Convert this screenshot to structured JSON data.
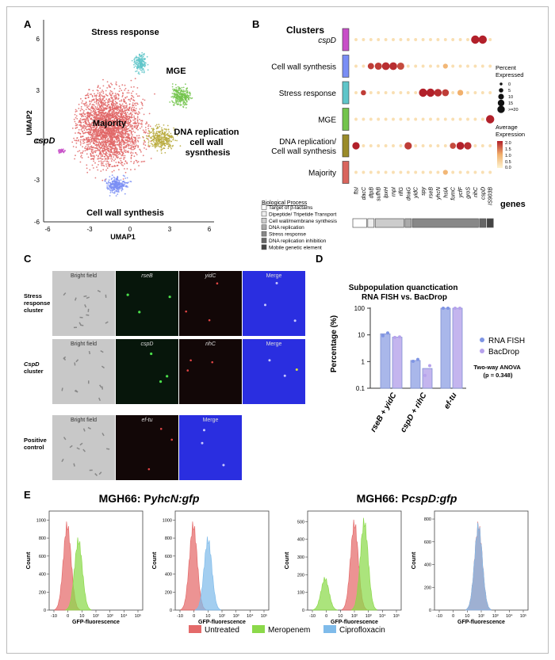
{
  "panel_labels": {
    "a": "A",
    "b": "B",
    "c": "C",
    "d": "D",
    "e": "E"
  },
  "chart_data": [
    {
      "type": "scatter",
      "title": "",
      "xlabel": "UMAP1",
      "ylabel": "UMAP2",
      "xticks": [
        "-6",
        "-3",
        "0",
        "3",
        "6"
      ],
      "yticks": [
        "6",
        "3",
        "0",
        "-3",
        "-6"
      ],
      "xlim": [
        -6,
        7
      ],
      "ylim": [
        -6,
        6.8
      ],
      "clusters": [
        {
          "name": "Majority",
          "color": "#e06666",
          "center": [
            -1.5,
            0.5
          ]
        },
        {
          "name": "Stress response",
          "color": "#5fc5c9",
          "center": [
            0.9,
            4.9
          ]
        },
        {
          "name": "MGE",
          "color": "#73c44c",
          "center": [
            3.8,
            2.5
          ]
        },
        {
          "name": "DNA replication and cell wall sysnthesis",
          "color": "#b9aa3c",
          "center": [
            2.3,
            -0.3
          ]
        },
        {
          "name": "cspD",
          "color": "#c84fc8",
          "center": [
            -5.0,
            -1.1
          ]
        },
        {
          "name": "Cell wall synthesis",
          "color": "#7a8ef5",
          "center": [
            -0.8,
            -3.6
          ]
        }
      ]
    },
    {
      "type": "dotplot",
      "title": "Clusters",
      "genes_label": "genes",
      "rows": [
        {
          "name": "cspD",
          "color": "#c84fc8"
        },
        {
          "name": "Cell wall synthesis",
          "color": "#7a8ef5"
        },
        {
          "name": "Stress response",
          "color": "#5fc5c9"
        },
        {
          "name": "MGE",
          "color": "#73c44c"
        },
        {
          "name": "DNA replication/ Cell wall synthesis",
          "color": "#9a8b2a"
        },
        {
          "name": "Majority",
          "color": "#d9655d"
        }
      ],
      "genes": [
        "ftsI",
        "dacC",
        "dtpB",
        "sufhB",
        "lpxH",
        "rnpI",
        "rlfG",
        "dnaG",
        "yidC",
        "spy",
        "rseB",
        "yhcN",
        "hslA",
        "fumC",
        "ycfF",
        "groS",
        "rihC",
        "cspD",
        "IS903B"
      ],
      "gene_groups": [
        {
          "process": "Target of β-lactams",
          "count": 2,
          "color": "#ffffff"
        },
        {
          "process": "Dipeptide/ Tripetide Transport",
          "count": 1,
          "color": "#eeeeee"
        },
        {
          "process": "Cell wall/membrane synthesis",
          "count": 4,
          "color": "#cccccc"
        },
        {
          "process": "DNA replication",
          "count": 1,
          "color": "#aaaaaa"
        },
        {
          "process": "Stress response",
          "count": 9,
          "color": "#888888"
        },
        {
          "process": "DNA replication inhibition",
          "count": 1,
          "color": "#666666"
        },
        {
          "process": "Mobile genetic element",
          "count": 1,
          "color": "#444444"
        }
      ],
      "legend_title_biological": "Biological Process",
      "percent_expressed": {
        "title": "Percent Expressed",
        "levels": [
          "0",
          "5",
          "10",
          "15",
          ">=20"
        ]
      },
      "average_expression": {
        "title": "Average Expression",
        "ticks": [
          "2.0",
          "1.5",
          "1.0",
          "0.5",
          "0.0"
        ],
        "range": [
          0,
          2
        ]
      },
      "high_dots": [
        {
          "row": 0,
          "gene": 16,
          "pct": 20,
          "avg": 2.0
        },
        {
          "row": 0,
          "gene": 17,
          "pct": 20,
          "avg": 2.0
        },
        {
          "row": 1,
          "gene": 2,
          "pct": 10,
          "avg": 1.8
        },
        {
          "row": 1,
          "gene": 3,
          "pct": 14,
          "avg": 1.8
        },
        {
          "row": 1,
          "gene": 4,
          "pct": 17,
          "avg": 1.9
        },
        {
          "row": 1,
          "gene": 5,
          "pct": 17,
          "avg": 1.9
        },
        {
          "row": 1,
          "gene": 6,
          "pct": 14,
          "avg": 1.7
        },
        {
          "row": 2,
          "gene": 1,
          "pct": 6,
          "avg": 1.8
        },
        {
          "row": 2,
          "gene": 9,
          "pct": 20,
          "avg": 2.0
        },
        {
          "row": 2,
          "gene": 10,
          "pct": 20,
          "avg": 2.0
        },
        {
          "row": 2,
          "gene": 11,
          "pct": 16,
          "avg": 1.9
        },
        {
          "row": 2,
          "gene": 12,
          "pct": 13,
          "avg": 1.8
        },
        {
          "row": 2,
          "gene": 14,
          "pct": 8,
          "avg": 1.0
        },
        {
          "row": 3,
          "gene": 18,
          "pct": 20,
          "avg": 2.0
        },
        {
          "row": 4,
          "gene": 0,
          "pct": 15,
          "avg": 2.0
        },
        {
          "row": 4,
          "gene": 7,
          "pct": 15,
          "avg": 1.8
        },
        {
          "row": 4,
          "gene": 13,
          "pct": 9,
          "avg": 1.7
        },
        {
          "row": 4,
          "gene": 14,
          "pct": 17,
          "avg": 2.0
        },
        {
          "row": 4,
          "gene": 15,
          "pct": 15,
          "avg": 1.9
        },
        {
          "row": 1,
          "gene": 12,
          "pct": 5,
          "avg": 0.9
        },
        {
          "row": 5,
          "gene": 12,
          "pct": 5,
          "avg": 0.9
        }
      ]
    },
    {
      "type": "image-grid",
      "rows": [
        {
          "label": "Stress response cluster",
          "columns": [
            "Bright field",
            "rseB",
            "yidC",
            "Merge"
          ]
        },
        {
          "label": "CspD cluster",
          "columns": [
            "Bright field",
            "cspD",
            "rihC",
            "Merge"
          ]
        },
        {
          "label": "Positive control",
          "columns": [
            "Bright field",
            "ef-tu",
            "Merge"
          ]
        }
      ]
    },
    {
      "type": "bar",
      "title": "Subpopulation quanctication RNA FISH vs. BacDrop",
      "ylabel": "Percentage (%)",
      "yscale": "log",
      "ylim": [
        0.1,
        100
      ],
      "yticks": [
        "100",
        "10",
        "1",
        "0.1"
      ],
      "categories": [
        "rseB + yidC",
        "cspD + rihC",
        "ef-tu"
      ],
      "series": [
        {
          "name": "RNA FISH",
          "color": "#a9b7ea",
          "values": [
            11,
            1.1,
            100
          ],
          "points": [
            [
              9.3,
              11.8
            ],
            [
              1.02,
              1.2
            ],
            [
              100,
              100
            ]
          ]
        },
        {
          "name": "BacDrop",
          "color": "#c4b5ee",
          "values": [
            8.2,
            0.55,
            100
          ],
          "points": [
            [
              8.0,
              8.4
            ],
            [
              0.3,
              0.7
            ],
            [
              100,
              100
            ]
          ]
        }
      ],
      "annotation": "Two-way ANOVA (p = 0.348)"
    },
    {
      "type": "histogram",
      "title": "MGH66: PyhcN:gfp",
      "title_prefix": "MGH66: P",
      "title_gene": "yhcN:gfp",
      "xlabel": "GFP-fluorescence",
      "ylabel": "Count",
      "xticks": [
        "-10",
        "0",
        "10",
        "10²",
        "10³",
        "10⁴",
        "10⁵"
      ],
      "panels": [
        {
          "yticks": [
            "0",
            "200",
            "400",
            "600",
            "800",
            "1000"
          ],
          "ymax": 1100,
          "series": [
            {
              "name": "Untreated",
              "peak": 1000,
              "center": 0.95
            },
            {
              "name": "Meropenem",
              "peak": 820,
              "center": 1.75
            }
          ]
        },
        {
          "yticks": [
            "0",
            "200",
            "400",
            "600",
            "800",
            "1000"
          ],
          "ymax": 1100,
          "series": [
            {
              "name": "Untreated",
              "peak": 1000,
              "center": 0.95
            },
            {
              "name": "Ciprofloxacin",
              "peak": 830,
              "center": 2.0
            }
          ]
        }
      ]
    },
    {
      "type": "histogram",
      "title": "MGH66: PcspD:gfp",
      "title_prefix": "MGH66: P",
      "title_gene": "cspD:gfp",
      "xlabel": "GFP-fluorescence",
      "ylabel": "Count",
      "xticks": [
        "-10",
        "0",
        "10",
        "10²",
        "10³",
        "10⁴",
        "10⁵"
      ],
      "panels": [
        {
          "yticks": [
            "0",
            "100",
            "200",
            "300",
            "400",
            "500"
          ],
          "ymax": 560,
          "series": [
            {
              "name": "Meropenem",
              "peak": 190,
              "center": 0.9
            },
            {
              "name": "Untreated",
              "peak": 520,
              "center": 3.0
            },
            {
              "name": "Meropenem",
              "peak": 530,
              "center": 3.7
            }
          ]
        },
        {
          "yticks": [
            "0",
            "200",
            "400",
            "600",
            "800"
          ],
          "ymax": 870,
          "series": [
            {
              "name": "Untreated",
              "peak": 790,
              "center": 2.8
            },
            {
              "name": "Ciprofloxacin",
              "peak": 780,
              "center": 2.8
            }
          ]
        }
      ],
      "legend": [
        {
          "name": "Untreated",
          "color": "#e46a6a"
        },
        {
          "name": "Meropenem",
          "color": "#8bd94a"
        },
        {
          "name": "Ciprofloxacin",
          "color": "#7fbbea"
        }
      ]
    }
  ]
}
